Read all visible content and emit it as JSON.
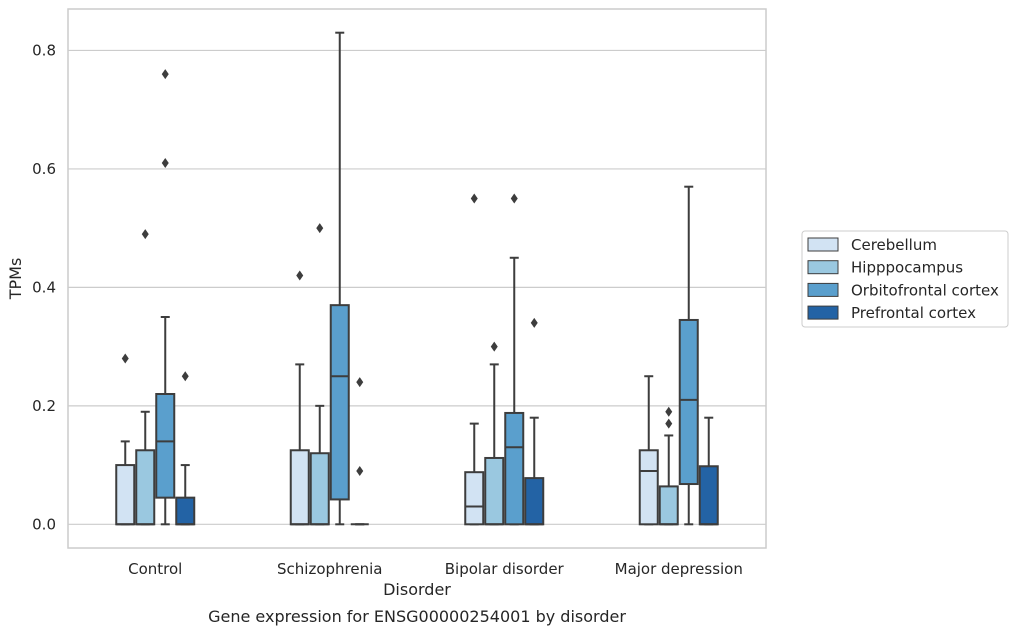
{
  "chart_data": {
    "type": "box",
    "title": "",
    "caption": "Gene expression for ENSG00000254001 by disorder",
    "xlabel": "Disorder",
    "ylabel": "TPMs",
    "ylim": [
      -0.04,
      0.87
    ],
    "yticks": [
      0.0,
      0.2,
      0.4,
      0.6,
      0.8
    ],
    "ytick_labels": [
      "0.0",
      "0.2",
      "0.4",
      "0.6",
      "0.8"
    ],
    "grid": "horizontal",
    "legend_position": "right",
    "categories": [
      "Control",
      "Schizophrenia",
      "Bipolar disorder",
      "Major depression"
    ],
    "series": [
      {
        "name": "Cerebellum",
        "color": "#d2e3f3",
        "boxes": [
          {
            "whislo": 0.0,
            "q1": 0.0,
            "med": 0.0,
            "q3": 0.1,
            "whishi": 0.14,
            "fliers": [
              0.28
            ]
          },
          {
            "whislo": 0.0,
            "q1": 0.0,
            "med": 0.0,
            "q3": 0.125,
            "whishi": 0.27,
            "fliers": [
              0.42
            ]
          },
          {
            "whislo": 0.0,
            "q1": 0.0,
            "med": 0.03,
            "q3": 0.088,
            "whishi": 0.17,
            "fliers": [
              0.55
            ]
          },
          {
            "whislo": 0.0,
            "q1": 0.0,
            "med": 0.09,
            "q3": 0.125,
            "whishi": 0.25,
            "fliers": []
          }
        ]
      },
      {
        "name": "Hipppocampus",
        "color": "#9ac8e0",
        "boxes": [
          {
            "whislo": 0.0,
            "q1": 0.0,
            "med": 0.0,
            "q3": 0.125,
            "whishi": 0.19,
            "fliers": [
              0.49
            ]
          },
          {
            "whislo": 0.0,
            "q1": 0.0,
            "med": 0.0,
            "q3": 0.12,
            "whishi": 0.2,
            "fliers": [
              0.5
            ]
          },
          {
            "whislo": 0.0,
            "q1": 0.0,
            "med": 0.0,
            "q3": 0.112,
            "whishi": 0.27,
            "fliers": [
              0.3
            ]
          },
          {
            "whislo": 0.0,
            "q1": 0.0,
            "med": 0.0,
            "q3": 0.064,
            "whishi": 0.15,
            "fliers": [
              0.17,
              0.19
            ]
          }
        ]
      },
      {
        "name": "Orbitofrontal cortex",
        "color": "#5a9fcd",
        "boxes": [
          {
            "whislo": 0.0,
            "q1": 0.045,
            "med": 0.14,
            "q3": 0.22,
            "whishi": 0.35,
            "fliers": [
              0.61,
              0.76
            ]
          },
          {
            "whislo": 0.0,
            "q1": 0.042,
            "med": 0.25,
            "q3": 0.37,
            "whishi": 0.83,
            "fliers": []
          },
          {
            "whislo": 0.0,
            "q1": 0.0,
            "med": 0.13,
            "q3": 0.188,
            "whishi": 0.45,
            "fliers": [
              0.55
            ]
          },
          {
            "whislo": 0.0,
            "q1": 0.068,
            "med": 0.21,
            "q3": 0.345,
            "whishi": 0.57,
            "fliers": []
          }
        ]
      },
      {
        "name": "Prefrontal cortex",
        "color": "#2363a5",
        "boxes": [
          {
            "whislo": 0.0,
            "q1": 0.0,
            "med": 0.0,
            "q3": 0.045,
            "whishi": 0.1,
            "fliers": [
              0.25
            ]
          },
          {
            "whislo": 0.0,
            "q1": 0.0,
            "med": 0.0,
            "q3": 0.0,
            "whishi": 0.0,
            "fliers": [
              0.09,
              0.24
            ]
          },
          {
            "whislo": 0.0,
            "q1": 0.0,
            "med": 0.0,
            "q3": 0.078,
            "whishi": 0.18,
            "fliers": [
              0.34
            ]
          },
          {
            "whislo": 0.0,
            "q1": 0.0,
            "med": 0.0,
            "q3": 0.098,
            "whishi": 0.18,
            "fliers": []
          }
        ]
      }
    ]
  }
}
